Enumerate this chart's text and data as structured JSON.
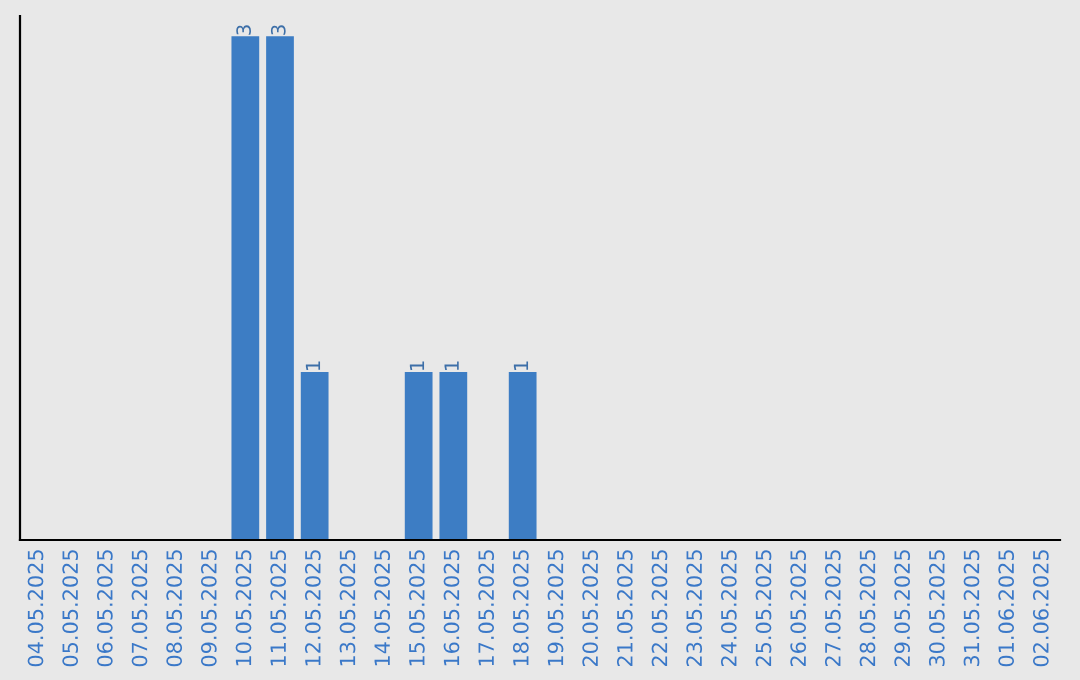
{
  "chart_data": {
    "type": "bar",
    "categories": [
      "04.05.2025",
      "05.05.2025",
      "06.05.2025",
      "07.05.2025",
      "08.05.2025",
      "09.05.2025",
      "10.05.2025",
      "11.05.2025",
      "12.05.2025",
      "13.05.2025",
      "14.05.2025",
      "15.05.2025",
      "16.05.2025",
      "17.05.2025",
      "18.05.2025",
      "19.05.2025",
      "20.05.2025",
      "21.05.2025",
      "22.05.2025",
      "23.05.2025",
      "24.05.2025",
      "25.05.2025",
      "26.05.2025",
      "27.05.2025",
      "28.05.2025",
      "29.05.2025",
      "30.05.2025",
      "31.05.2025",
      "01.06.2025",
      "02.06.2025"
    ],
    "values": [
      0,
      0,
      0,
      0,
      0,
      0,
      3,
      3,
      1,
      0,
      0,
      1,
      1,
      0,
      1,
      0,
      0,
      0,
      0,
      0,
      0,
      0,
      0,
      0,
      0,
      0,
      0,
      0,
      0,
      0
    ],
    "value_labels": [
      null,
      null,
      null,
      null,
      null,
      null,
      "3",
      "3",
      "1",
      null,
      null,
      "1",
      "1",
      null,
      "1",
      null,
      null,
      null,
      null,
      null,
      null,
      null,
      null,
      null,
      null,
      null,
      null,
      null,
      null,
      null
    ],
    "color": "#3d7dc4",
    "grid": false,
    "legend": false
  }
}
